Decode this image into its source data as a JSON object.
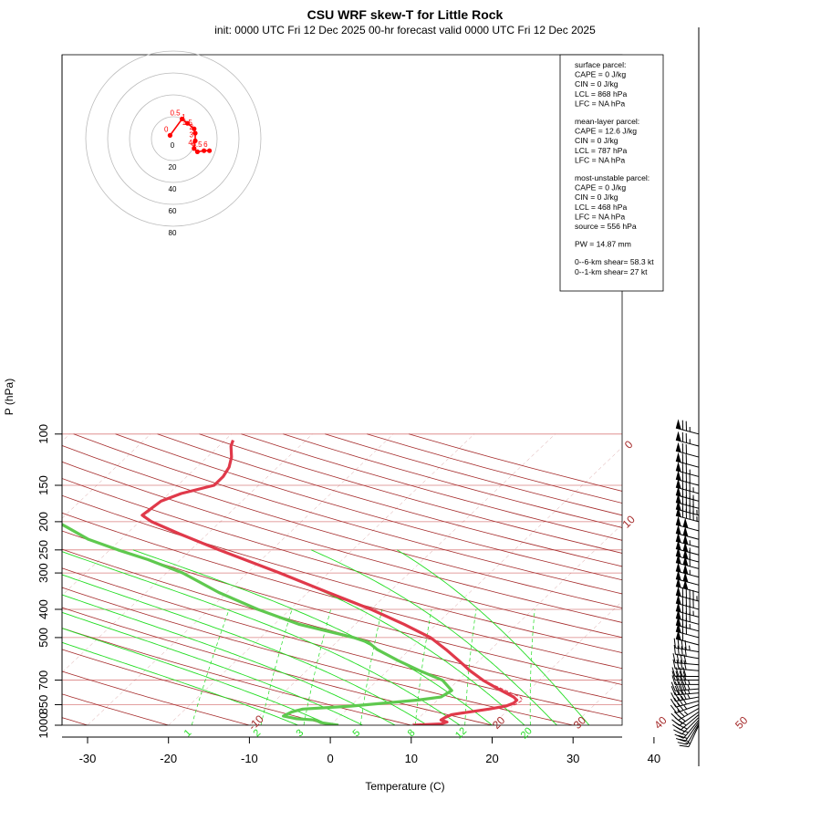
{
  "chart_data": {
    "type": "skew-t",
    "title": "CSU WRF skew-T for Little Rock",
    "subtitle": "init: 0000 UTC Fri 12 Dec 2025     00-hr forecast valid 0000 UTC Fri 12 Dec 2025",
    "xlabel": "Temperature (C)",
    "ylabel": "P (hPa)",
    "x_ticks": [
      -30,
      -20,
      -10,
      0,
      10,
      20,
      30,
      40
    ],
    "xlim": [
      -33,
      42
    ],
    "p_ticks": [
      100,
      150,
      200,
      250,
      300,
      400,
      500,
      700,
      850,
      1000
    ],
    "plim": [
      100,
      1000
    ],
    "isotherms": [
      -110,
      -100,
      -90,
      -80,
      -70,
      -60,
      -50,
      -40,
      -30,
      -20,
      -10,
      0,
      10,
      20,
      30,
      40,
      50
    ],
    "isotherm_labels": [
      {
        "text": "-10",
        "t": -10
      },
      {
        "text": "0",
        "t": 0
      },
      {
        "text": "10",
        "t": 10
      },
      {
        "text": "20",
        "t": 20
      },
      {
        "text": "30",
        "t": 30
      },
      {
        "text": "40",
        "t": 40
      },
      {
        "text": "50",
        "t": 50
      }
    ],
    "mixing_ratios": [
      1,
      2,
      3,
      5,
      8,
      12,
      20
    ],
    "mixing_ratio_labels": [
      "1",
      "2",
      "3",
      "5",
      "8",
      "12",
      "20"
    ],
    "temperature": [
      {
        "p": 1000,
        "t": 10.2
      },
      {
        "p": 990,
        "t": 13.5
      },
      {
        "p": 975,
        "t": 14.0
      },
      {
        "p": 960,
        "t": 13.0
      },
      {
        "p": 940,
        "t": 13.2
      },
      {
        "p": 920,
        "t": 13.6
      },
      {
        "p": 900,
        "t": 15.5
      },
      {
        "p": 880,
        "t": 17.5
      },
      {
        "p": 860,
        "t": 19.2
      },
      {
        "p": 840,
        "t": 19.8
      },
      {
        "p": 820,
        "t": 19.8
      },
      {
        "p": 800,
        "t": 19.0
      },
      {
        "p": 750,
        "t": 16.0
      },
      {
        "p": 700,
        "t": 13.0
      },
      {
        "p": 650,
        "t": 10.2
      },
      {
        "p": 600,
        "t": 7.5
      },
      {
        "p": 550,
        "t": 4.5
      },
      {
        "p": 500,
        "t": 1.0
      },
      {
        "p": 450,
        "t": -4.0
      },
      {
        "p": 400,
        "t": -10.0
      },
      {
        "p": 350,
        "t": -17.5
      },
      {
        "p": 300,
        "t": -26.0
      },
      {
        "p": 250,
        "t": -36.5
      },
      {
        "p": 220,
        "t": -43.5
      },
      {
        "p": 200,
        "t": -48.5
      },
      {
        "p": 190,
        "t": -50.5
      },
      {
        "p": 170,
        "t": -50.0
      },
      {
        "p": 160,
        "t": -48.5
      },
      {
        "p": 150,
        "t": -45.5
      },
      {
        "p": 140,
        "t": -45.5
      },
      {
        "p": 130,
        "t": -46.0
      },
      {
        "p": 120,
        "t": -47.0
      },
      {
        "p": 110,
        "t": -48.5
      },
      {
        "p": 105,
        "t": -49.0
      }
    ],
    "dewpoint": [
      {
        "p": 1000,
        "t": 1.0
      },
      {
        "p": 980,
        "t": -1.5
      },
      {
        "p": 960,
        "t": -2.5
      },
      {
        "p": 950,
        "t": -5.0
      },
      {
        "p": 930,
        "t": -7.0
      },
      {
        "p": 900,
        "t": -6.5
      },
      {
        "p": 880,
        "t": -5.5
      },
      {
        "p": 860,
        "t": 0.0
      },
      {
        "p": 820,
        "t": 7.5
      },
      {
        "p": 800,
        "t": 10.0
      },
      {
        "p": 760,
        "t": 10.5
      },
      {
        "p": 700,
        "t": 8.0
      },
      {
        "p": 650,
        "t": 4.0
      },
      {
        "p": 600,
        "t": 0.0
      },
      {
        "p": 550,
        "t": -4.0
      },
      {
        "p": 520,
        "t": -6.0
      },
      {
        "p": 500,
        "t": -8.5
      },
      {
        "p": 470,
        "t": -13.5
      },
      {
        "p": 450,
        "t": -17.0
      },
      {
        "p": 400,
        "t": -24.0
      },
      {
        "p": 350,
        "t": -31.0
      },
      {
        "p": 300,
        "t": -38.0
      },
      {
        "p": 270,
        "t": -44.0
      },
      {
        "p": 250,
        "t": -49.0
      },
      {
        "p": 230,
        "t": -54.0
      },
      {
        "p": 210,
        "t": -58.0
      },
      {
        "p": 190,
        "t": -62.5
      }
    ],
    "parcel_trace": [
      {
        "p": 900,
        "t": 14.9
      },
      {
        "p": 850,
        "t": 20.2
      },
      {
        "p": 820,
        "t": 20.5
      },
      {
        "p": 800,
        "t": 19.8
      },
      {
        "p": 750,
        "t": 16.5
      },
      {
        "p": 700,
        "t": 13.0
      },
      {
        "p": 650,
        "t": 10.0
      },
      {
        "p": 600,
        "t": 7.5
      }
    ],
    "info_box": {
      "surface": [
        "surface parcel:",
        "CAPE = 0 J/kg",
        "CIN = 0 J/kg",
        "LCL = 868 hPa",
        "LFC = NA hPa"
      ],
      "mean_layer": [
        "mean-layer parcel:",
        "CAPE = 12.6 J/kg",
        "CIN = 0 J/kg",
        "LCL = 787 hPa",
        "LFC = NA hPa"
      ],
      "most_unstable": [
        "most-unstable parcel:",
        "CAPE = 0 J/kg",
        "CIN = 0 J/kg",
        "LCL = 468 hPa",
        "LFC = NA hPa",
        "source = 556 hPa"
      ],
      "pw": "PW =  14.87 mm",
      "shear": [
        "0--6-km shear= 58.3 kt",
        "0--1-km shear= 27 kt"
      ]
    },
    "hodograph": {
      "rings": [
        20,
        40,
        60,
        80
      ],
      "ring_labels": [
        "0",
        "20",
        "40",
        "60",
        "80"
      ],
      "points": [
        {
          "label": "0",
          "u": -3,
          "v": 3
        },
        {
          "label": "0.5",
          "u": 8,
          "v": 18
        },
        {
          "label": "1",
          "u": 13,
          "v": 14
        },
        {
          "label": "1.5",
          "u": 19,
          "v": 9
        },
        {
          "label": "2",
          "u": 20,
          "v": 5
        },
        {
          "label": "3",
          "u": 20,
          "v": -2
        },
        {
          "label": "4",
          "u": 19,
          "v": -9
        },
        {
          "label": "5",
          "u": 22,
          "v": -12
        },
        {
          "label": "5.5",
          "u": 28,
          "v": -11
        },
        {
          "label": "6",
          "u": 33,
          "v": -11
        }
      ]
    },
    "wind_barbs": [
      {
        "p": 100,
        "dir": 285,
        "spd": 75
      },
      {
        "p": 110,
        "dir": 285,
        "spd": 75
      },
      {
        "p": 120,
        "dir": 285,
        "spd": 70
      },
      {
        "p": 130,
        "dir": 285,
        "spd": 70
      },
      {
        "p": 140,
        "dir": 285,
        "spd": 75
      },
      {
        "p": 150,
        "dir": 285,
        "spd": 80
      },
      {
        "p": 160,
        "dir": 285,
        "spd": 85
      },
      {
        "p": 170,
        "dir": 285,
        "spd": 85
      },
      {
        "p": 180,
        "dir": 285,
        "spd": 90
      },
      {
        "p": 190,
        "dir": 285,
        "spd": 95
      },
      {
        "p": 200,
        "dir": 285,
        "spd": 95
      },
      {
        "p": 215,
        "dir": 285,
        "spd": 100
      },
      {
        "p": 230,
        "dir": 285,
        "spd": 100
      },
      {
        "p": 245,
        "dir": 285,
        "spd": 105
      },
      {
        "p": 260,
        "dir": 285,
        "spd": 105
      },
      {
        "p": 275,
        "dir": 285,
        "spd": 110
      },
      {
        "p": 290,
        "dir": 285,
        "spd": 110
      },
      {
        "p": 310,
        "dir": 285,
        "spd": 105
      },
      {
        "p": 330,
        "dir": 285,
        "spd": 100
      },
      {
        "p": 350,
        "dir": 285,
        "spd": 100
      },
      {
        "p": 375,
        "dir": 285,
        "spd": 95
      },
      {
        "p": 400,
        "dir": 285,
        "spd": 90
      },
      {
        "p": 425,
        "dir": 285,
        "spd": 85
      },
      {
        "p": 450,
        "dir": 285,
        "spd": 80
      },
      {
        "p": 475,
        "dir": 285,
        "spd": 75
      },
      {
        "p": 500,
        "dir": 285,
        "spd": 70
      },
      {
        "p": 530,
        "dir": 285,
        "spd": 60
      },
      {
        "p": 560,
        "dir": 280,
        "spd": 45
      },
      {
        "p": 590,
        "dir": 280,
        "spd": 40
      },
      {
        "p": 620,
        "dir": 275,
        "spd": 40
      },
      {
        "p": 650,
        "dir": 275,
        "spd": 40
      },
      {
        "p": 680,
        "dir": 270,
        "spd": 40
      },
      {
        "p": 700,
        "dir": 270,
        "spd": 40
      },
      {
        "p": 725,
        "dir": 270,
        "spd": 45
      },
      {
        "p": 750,
        "dir": 265,
        "spd": 45
      },
      {
        "p": 775,
        "dir": 265,
        "spd": 45
      },
      {
        "p": 800,
        "dir": 260,
        "spd": 45
      },
      {
        "p": 825,
        "dir": 255,
        "spd": 40
      },
      {
        "p": 850,
        "dir": 250,
        "spd": 35
      },
      {
        "p": 875,
        "dir": 240,
        "spd": 35
      },
      {
        "p": 900,
        "dir": 235,
        "spd": 30
      },
      {
        "p": 920,
        "dir": 230,
        "spd": 30
      },
      {
        "p": 940,
        "dir": 225,
        "spd": 25
      },
      {
        "p": 960,
        "dir": 220,
        "spd": 25
      },
      {
        "p": 975,
        "dir": 215,
        "spd": 20
      },
      {
        "p": 990,
        "dir": 210,
        "spd": 20
      },
      {
        "p": 1000,
        "dir": 205,
        "spd": 15
      }
    ]
  },
  "colors": {
    "isotherm": "#a52a2a",
    "isobar": "#d98080",
    "dry_adiabat": "#a52a2a",
    "moist_adiabat": "#22dd22",
    "mixing_ratio": "#22dd22",
    "temperature": "#e0394a",
    "dewpoint": "#5fc94f",
    "hodograph": "#ff0000",
    "ring": "#bbbbbb"
  }
}
